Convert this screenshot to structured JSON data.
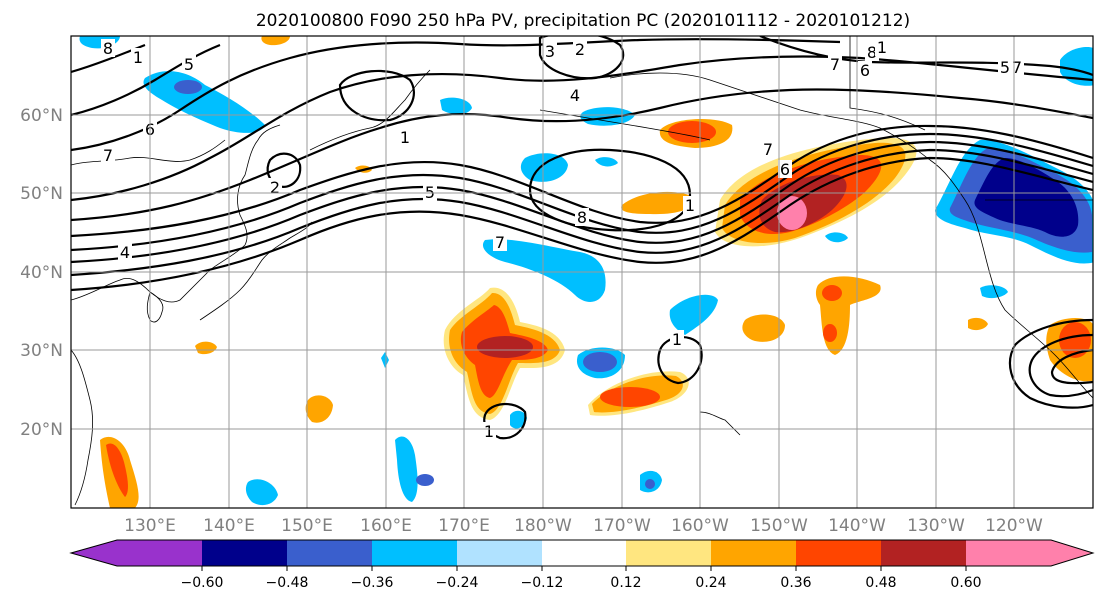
{
  "title": "2020100800 F090 250 hPa PV, precipitation PC (2020101112 - 2020101212)",
  "map": {
    "lat_labels": [
      "60°N",
      "50°N",
      "40°N",
      "30°N",
      "20°N"
    ],
    "lon_labels": [
      "130°E",
      "140°E",
      "150°E",
      "160°E",
      "170°E",
      "180°W",
      "170°W",
      "160°W",
      "150°W",
      "140°W",
      "130°W",
      "120°W"
    ],
    "contour_labels": [
      "8",
      "1",
      "5",
      "3",
      "2",
      "4",
      "6",
      "7",
      "1",
      "2",
      "4",
      "5",
      "7",
      "8",
      "7",
      "6",
      "8",
      "1",
      "7",
      "6",
      "7",
      "5",
      "1",
      "1",
      "1"
    ]
  },
  "colorbar": {
    "tick_labels": [
      "−0.60",
      "−0.48",
      "−0.36",
      "−0.24",
      "−0.12",
      "0.12",
      "0.24",
      "0.36",
      "0.48",
      "0.60"
    ],
    "colors": [
      "#9932cc",
      "#00008b",
      "#3a5fcd",
      "#00bfff",
      "#b0e2ff",
      "#ffffff",
      "#ffe680",
      "#ffa500",
      "#ff4500",
      "#b22222",
      "#ff80ab"
    ]
  }
}
